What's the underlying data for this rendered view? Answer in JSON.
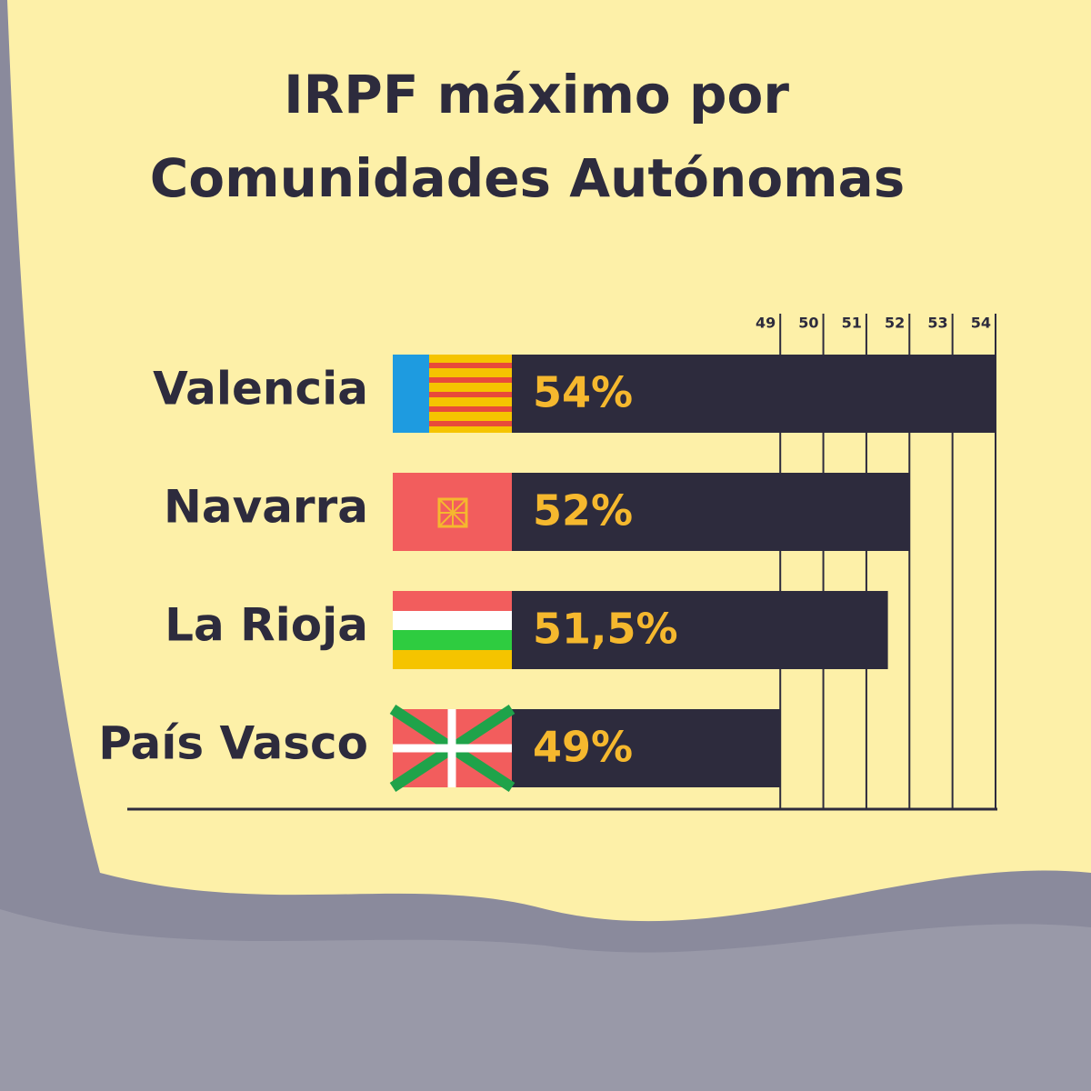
{
  "chart_data": {
    "type": "bar",
    "orientation": "horizontal",
    "title": [
      "IRPF máximo por",
      "Comunidades Autónomas"
    ],
    "categories": [
      "Valencia",
      "Navarra",
      "La Rioja",
      "País Vasco"
    ],
    "values": [
      54,
      52,
      51.5,
      49
    ],
    "value_labels": [
      "54%",
      "52%",
      "51,5%",
      "49%"
    ],
    "color": "#2d2b3d",
    "label_color": "#f5b82e",
    "xlim": [
      40,
      54
    ],
    "xticks": [
      49,
      50,
      51,
      52,
      53,
      54
    ],
    "grid": true
  }
}
